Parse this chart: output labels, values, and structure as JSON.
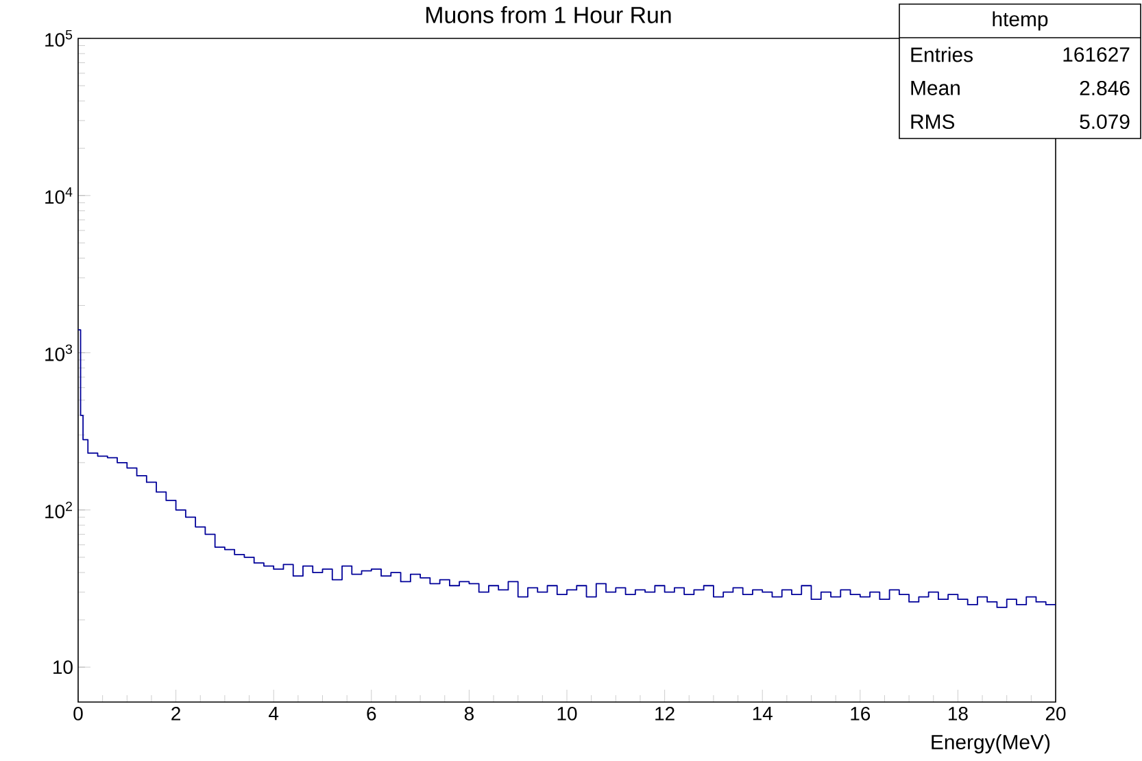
{
  "chart_data": {
    "type": "histogram",
    "title": "Muons from 1 Hour Run",
    "xlabel": "Energy(MeV)",
    "bins": [
      0,
      0.05,
      0.1,
      0.2,
      0.4,
      0.6,
      0.8,
      1.0,
      1.2,
      1.4,
      1.6,
      1.8,
      2.0,
      2.2,
      2.4,
      2.6,
      2.8,
      3.0,
      3.2,
      3.4,
      3.6,
      3.8,
      4.0,
      4.2,
      4.4,
      4.6,
      4.8,
      5.0,
      5.2,
      5.4,
      5.6,
      5.8,
      6.0,
      6.2,
      6.4,
      6.6,
      6.8,
      7.0,
      7.2,
      7.4,
      7.6,
      7.8,
      8.0,
      8.2,
      8.4,
      8.6,
      8.8,
      9.0,
      9.2,
      9.4,
      9.6,
      9.8,
      10.0,
      10.2,
      10.4,
      10.6,
      10.8,
      11.0,
      11.2,
      11.4,
      11.6,
      11.8,
      12.0,
      12.2,
      12.4,
      12.6,
      12.8,
      13.0,
      13.2,
      13.4,
      13.6,
      13.8,
      14.0,
      14.2,
      14.4,
      14.6,
      14.8,
      15.0,
      15.2,
      15.4,
      15.6,
      15.8,
      16.0,
      16.2,
      16.4,
      16.6,
      16.8,
      17.0,
      17.2,
      17.4,
      17.6,
      17.8,
      18.0,
      18.2,
      18.4,
      18.6,
      18.8,
      19.0,
      19.2,
      19.4,
      19.6,
      19.8,
      20.0
    ],
    "values": [
      1400,
      400,
      280,
      230,
      220,
      215,
      200,
      185,
      165,
      150,
      130,
      115,
      100,
      90,
      78,
      70,
      58,
      56,
      52,
      50,
      46,
      44,
      42,
      45,
      38,
      44,
      40,
      42,
      36,
      44,
      39,
      41,
      42,
      38,
      40,
      35,
      39,
      37,
      34,
      36,
      33,
      35,
      34,
      30,
      33,
      31,
      35,
      28,
      32,
      30,
      33,
      29,
      31,
      33,
      28,
      34,
      30,
      32,
      29,
      31,
      30,
      33,
      30,
      32,
      29,
      31,
      33,
      28,
      30,
      32,
      29,
      31,
      30,
      28,
      31,
      29,
      33,
      27,
      30,
      28,
      31,
      29,
      28,
      30,
      27,
      31,
      29,
      26,
      28,
      30,
      27,
      29,
      27,
      25,
      28,
      26,
      24,
      27,
      25,
      28,
      26,
      25
    ],
    "color": "#000099",
    "log": "y",
    "xlim": [
      0,
      20
    ],
    "ylim": [
      6,
      100000
    ],
    "xticks": [
      0,
      2,
      4,
      6,
      8,
      10,
      12,
      14,
      16,
      18,
      20
    ],
    "yticks": [
      {
        "value": 10,
        "label": "10"
      },
      {
        "value": 100,
        "label": "10$^{2}$"
      },
      {
        "value": 1000,
        "label": "10$^{3}$"
      },
      {
        "value": 10000,
        "label": "10$^{4}$"
      },
      {
        "value": 100000,
        "label": "10$^{5}$"
      }
    ],
    "annotations": [
      "htemp",
      "Entries",
      "161627",
      "Mean",
      "2.846",
      "RMS",
      "5.079"
    ]
  }
}
